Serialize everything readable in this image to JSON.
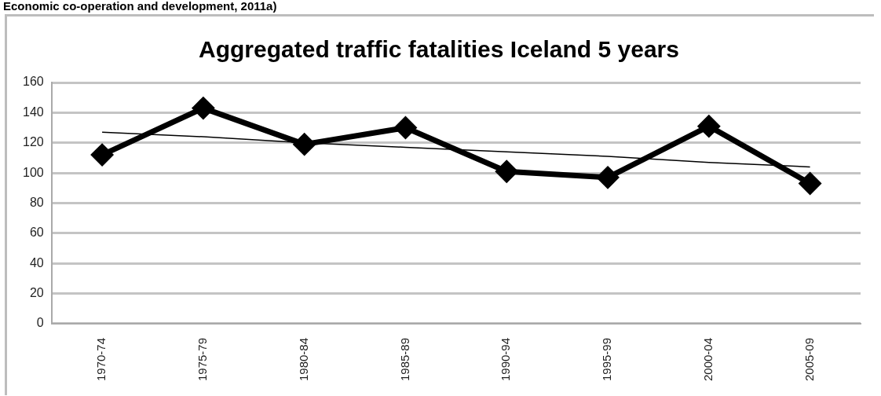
{
  "chart_data": {
    "type": "line",
    "title": "Aggregated traffic fatalities Iceland 5 years",
    "annotations": [
      "Economic co-operation and development, 2011a)"
    ],
    "categories": [
      "1970-74",
      "1975-79",
      "1980-84",
      "1985-89",
      "1990-94",
      "1995-99",
      "2000-04",
      "2005-09"
    ],
    "series": [
      {
        "color": "#000000",
        "values": [
          112,
          143,
          119,
          130,
          101,
          97,
          131,
          93
        ],
        "marker": "diamond"
      },
      {
        "type": "line",
        "color": "#000000",
        "values": [
          127,
          124,
          120,
          117,
          114,
          111,
          107,
          104
        ],
        "marker": "none"
      }
    ],
    "ylim": [
      0,
      160
    ],
    "yticks": [
      0,
      20,
      40,
      60,
      80,
      100,
      120,
      140,
      160
    ],
    "grid": "y",
    "legend": false
  }
}
